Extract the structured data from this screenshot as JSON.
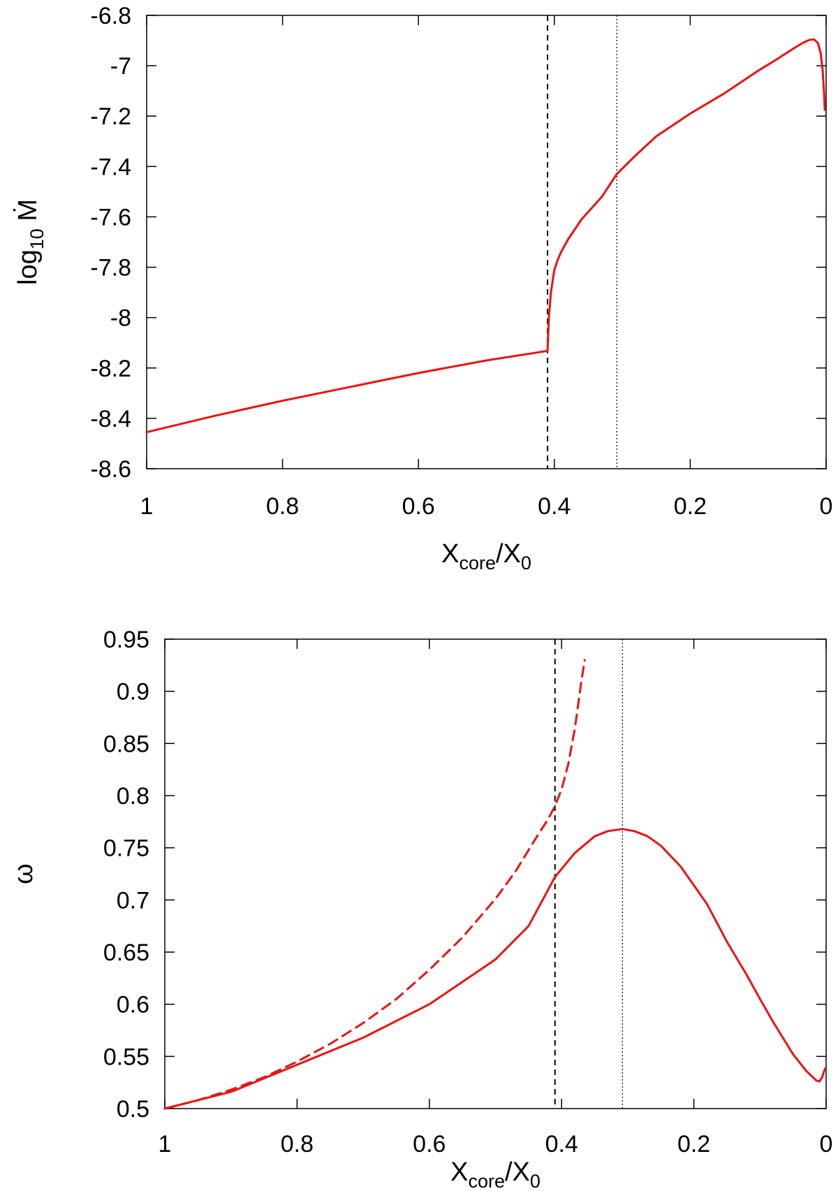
{
  "chart_data": [
    {
      "id": "top",
      "type": "line",
      "xlabel_main": "X",
      "xlabel_sub": "core",
      "xlabel_mid": "/X",
      "xlabel_sub2": "0",
      "ylabel_main": "log",
      "ylabel_sub": "10",
      "ylabel_tail": " Ṁ",
      "xlim": [
        1,
        0
      ],
      "ylim": [
        -8.6,
        -6.8
      ],
      "xticks": [
        1,
        0.8,
        0.6,
        0.4,
        0.2,
        0
      ],
      "xtick_labels": [
        "1",
        "0.8",
        "0.6",
        "0.4",
        "0.2",
        "0"
      ],
      "yticks": [
        -6.8,
        -7,
        -7.2,
        -7.4,
        -7.6,
        -7.8,
        -8,
        -8.2,
        -8.4,
        -8.6
      ],
      "ytick_labels": [
        "-6.8",
        "-7",
        "-7.2",
        "-7.4",
        "-7.6",
        "-7.8",
        "-8",
        "-8.2",
        "-8.4",
        "-8.6"
      ],
      "vlines": [
        {
          "x": 0.41,
          "style": "dashed"
        },
        {
          "x": 0.308,
          "style": "dotted"
        }
      ],
      "series": [
        {
          "name": "log10 Mdot",
          "style": "solid",
          "color": "#ee1111",
          "x": [
            1.0,
            0.9,
            0.8,
            0.7,
            0.6,
            0.5,
            0.41,
            0.408,
            0.405,
            0.4,
            0.395,
            0.39,
            0.38,
            0.37,
            0.36,
            0.35,
            0.33,
            0.308,
            0.28,
            0.25,
            0.2,
            0.15,
            0.1,
            0.07,
            0.05,
            0.035,
            0.025,
            0.018,
            0.012,
            0.008,
            0.005,
            0.003,
            0.002
          ],
          "y": [
            -8.455,
            -8.39,
            -8.33,
            -8.275,
            -8.22,
            -8.17,
            -8.132,
            -8.0,
            -7.9,
            -7.81,
            -7.77,
            -7.74,
            -7.69,
            -7.65,
            -7.61,
            -7.58,
            -7.52,
            -7.43,
            -7.355,
            -7.28,
            -7.19,
            -7.11,
            -7.02,
            -6.97,
            -6.935,
            -6.91,
            -6.898,
            -6.895,
            -6.91,
            -6.95,
            -7.02,
            -7.11,
            -7.175
          ]
        }
      ]
    },
    {
      "id": "bottom",
      "type": "line",
      "xlabel_main": "X",
      "xlabel_sub": "core",
      "xlabel_mid": "/X",
      "xlabel_sub2": "0",
      "ylabel_main": "ω",
      "xlim": [
        1,
        0
      ],
      "ylim": [
        0.5,
        0.95
      ],
      "xticks": [
        1,
        0.8,
        0.6,
        0.4,
        0.2,
        0
      ],
      "xtick_labels": [
        "1",
        "0.8",
        "0.6",
        "0.4",
        "0.2",
        "0"
      ],
      "yticks": [
        0.95,
        0.9,
        0.85,
        0.8,
        0.75,
        0.7,
        0.65,
        0.6,
        0.55,
        0.5
      ],
      "ytick_labels": [
        "0.95",
        "0.9",
        "0.85",
        "0.8",
        "0.75",
        "0.7",
        "0.65",
        "0.6",
        "0.55",
        "0.5"
      ],
      "vlines": [
        {
          "x": 0.41,
          "style": "dashed"
        },
        {
          "x": 0.308,
          "style": "dotted"
        }
      ],
      "series": [
        {
          "name": "omega solid",
          "style": "solid",
          "color": "#ee1111",
          "x": [
            1.0,
            0.9,
            0.8,
            0.7,
            0.6,
            0.5,
            0.45,
            0.41,
            0.38,
            0.35,
            0.33,
            0.308,
            0.29,
            0.27,
            0.25,
            0.22,
            0.2,
            0.18,
            0.15,
            0.12,
            0.1,
            0.08,
            0.05,
            0.03,
            0.015,
            0.01,
            0.006,
            0.003,
            0.001
          ],
          "y": [
            0.5,
            0.516,
            0.542,
            0.568,
            0.6,
            0.643,
            0.675,
            0.722,
            0.745,
            0.761,
            0.766,
            0.768,
            0.766,
            0.761,
            0.752,
            0.732,
            0.714,
            0.696,
            0.66,
            0.628,
            0.605,
            0.583,
            0.552,
            0.536,
            0.527,
            0.526,
            0.53,
            0.536,
            0.539
          ]
        },
        {
          "name": "omega dashed",
          "style": "dashed",
          "color": "#ee1111",
          "x": [
            1.0,
            0.95,
            0.9,
            0.85,
            0.8,
            0.75,
            0.7,
            0.65,
            0.6,
            0.55,
            0.5,
            0.47,
            0.44,
            0.42,
            0.41,
            0.4,
            0.39,
            0.38,
            0.37,
            0.365
          ],
          "y": [
            0.5,
            0.508,
            0.518,
            0.53,
            0.545,
            0.562,
            0.582,
            0.605,
            0.633,
            0.664,
            0.701,
            0.727,
            0.758,
            0.778,
            0.79,
            0.806,
            0.83,
            0.864,
            0.91,
            0.93
          ]
        }
      ]
    }
  ]
}
